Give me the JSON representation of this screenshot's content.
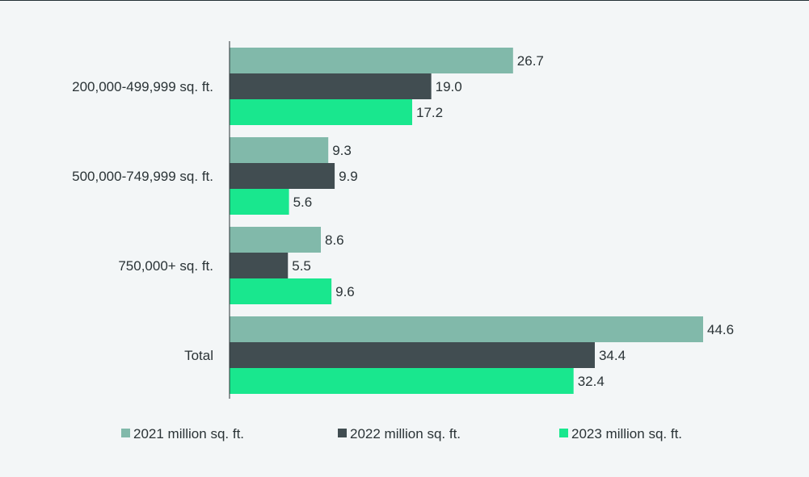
{
  "chart_data": {
    "type": "bar",
    "orientation": "horizontal",
    "title": "",
    "xlabel": "",
    "ylabel": "",
    "xlim": [
      0,
      47
    ],
    "grid": false,
    "legend_position": "bottom",
    "categories": [
      "200,000-499,999 sq. ft.",
      "500,000-749,999 sq. ft.",
      "750,000+ sq. ft.",
      "Total"
    ],
    "series": [
      {
        "name": "2021 million sq. ft.",
        "color": "#81b9aa",
        "values": [
          26.7,
          9.3,
          8.6,
          44.6
        ],
        "labels": [
          "26.7",
          "9.3",
          "8.6",
          "44.6"
        ]
      },
      {
        "name": "2022 million sq. ft.",
        "color": "#414d51",
        "values": [
          19.0,
          9.9,
          5.5,
          34.4
        ],
        "labels": [
          "19.0",
          "9.9",
          "5.5",
          "34.4"
        ]
      },
      {
        "name": "2023 million sq. ft.",
        "color": "#19e78e",
        "values": [
          17.2,
          5.6,
          9.6,
          32.4
        ],
        "labels": [
          "17.2",
          "5.6",
          "9.6",
          "32.4"
        ]
      }
    ]
  }
}
